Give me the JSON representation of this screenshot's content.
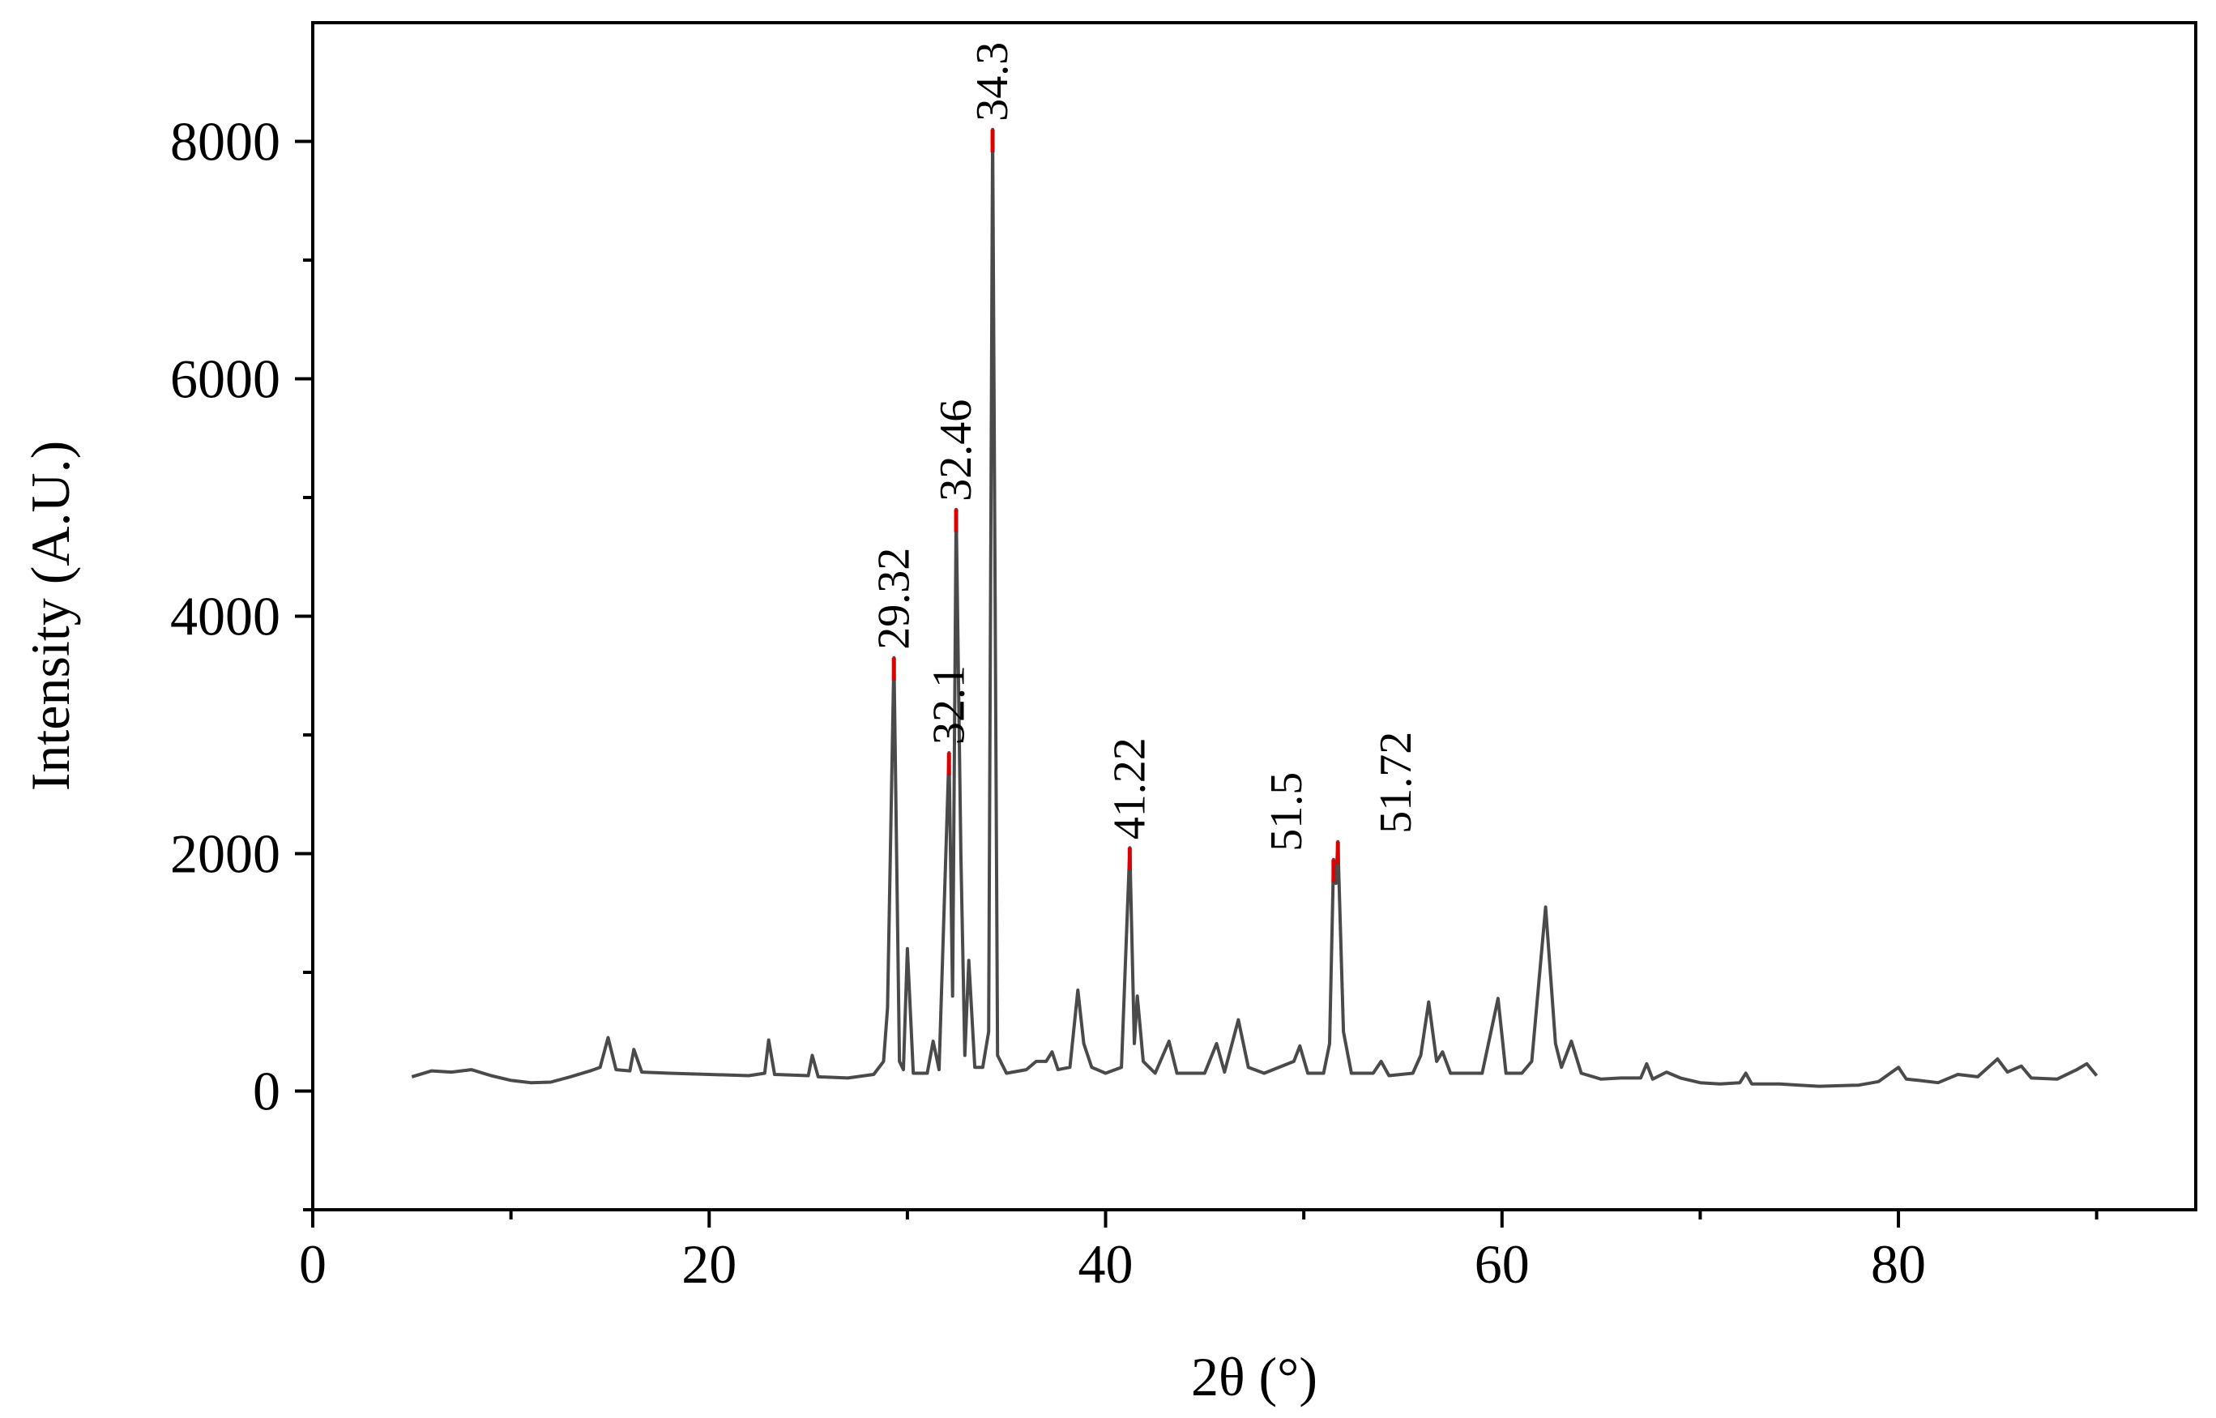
{
  "chart_data": {
    "type": "line",
    "title": "",
    "xlabel": "2θ  (°)",
    "ylabel": "Intensity (A.U.)",
    "xlim": [
      0,
      95
    ],
    "ylim": [
      -1000,
      9000
    ],
    "x_ticks": [
      0,
      20,
      40,
      60,
      80
    ],
    "y_ticks": [
      0,
      2000,
      4000,
      6000,
      8000
    ],
    "grid": false,
    "legend": "none",
    "colors": {
      "line": "#4a4a4a",
      "peak_marker": "#dd0000",
      "axes": "#000000"
    },
    "series": [
      {
        "values": [
          [
            5,
            120
          ],
          [
            6,
            170
          ],
          [
            7,
            160
          ],
          [
            8,
            180
          ],
          [
            9,
            130
          ],
          [
            10,
            90
          ],
          [
            11,
            70
          ],
          [
            12,
            75
          ],
          [
            13,
            120
          ],
          [
            14,
            170
          ],
          [
            14.5,
            200
          ],
          [
            14.9,
            450
          ],
          [
            15.3,
            180
          ],
          [
            16,
            170
          ],
          [
            16.2,
            350
          ],
          [
            16.6,
            160
          ],
          [
            18,
            150
          ],
          [
            20,
            140
          ],
          [
            22,
            130
          ],
          [
            22.8,
            150
          ],
          [
            23,
            430
          ],
          [
            23.3,
            140
          ],
          [
            25,
            130
          ],
          [
            25.2,
            300
          ],
          [
            25.5,
            120
          ],
          [
            27,
            110
          ],
          [
            28.3,
            140
          ],
          [
            28.8,
            250
          ],
          [
            29.0,
            700
          ],
          [
            29.32,
            3650
          ],
          [
            29.6,
            250
          ],
          [
            29.8,
            180
          ],
          [
            30.0,
            1200
          ],
          [
            30.3,
            150
          ],
          [
            31.0,
            150
          ],
          [
            31.3,
            420
          ],
          [
            31.6,
            180
          ],
          [
            32.1,
            2850
          ],
          [
            32.28,
            800
          ],
          [
            32.46,
            4900
          ],
          [
            32.7,
            2000
          ],
          [
            32.9,
            300
          ],
          [
            33.1,
            1100
          ],
          [
            33.4,
            200
          ],
          [
            33.8,
            200
          ],
          [
            34.1,
            500
          ],
          [
            34.3,
            8100
          ],
          [
            34.55,
            300
          ],
          [
            35,
            150
          ],
          [
            36,
            180
          ],
          [
            36.5,
            250
          ],
          [
            37,
            250
          ],
          [
            37.3,
            330
          ],
          [
            37.6,
            180
          ],
          [
            38.2,
            200
          ],
          [
            38.6,
            850
          ],
          [
            38.9,
            400
          ],
          [
            39.3,
            200
          ],
          [
            40,
            150
          ],
          [
            40.8,
            200
          ],
          [
            41.22,
            2050
          ],
          [
            41.45,
            400
          ],
          [
            41.6,
            800
          ],
          [
            41.9,
            250
          ],
          [
            42.5,
            150
          ],
          [
            43.2,
            420
          ],
          [
            43.6,
            150
          ],
          [
            45,
            150
          ],
          [
            45.6,
            400
          ],
          [
            46,
            160
          ],
          [
            46.7,
            600
          ],
          [
            47.2,
            200
          ],
          [
            48,
            150
          ],
          [
            49.5,
            250
          ],
          [
            49.8,
            380
          ],
          [
            50.2,
            150
          ],
          [
            51,
            150
          ],
          [
            51.3,
            400
          ],
          [
            51.5,
            1950
          ],
          [
            51.62,
            1750
          ],
          [
            51.72,
            2100
          ],
          [
            52,
            500
          ],
          [
            52.4,
            150
          ],
          [
            53.5,
            150
          ],
          [
            53.9,
            250
          ],
          [
            54.3,
            130
          ],
          [
            55.5,
            150
          ],
          [
            55.9,
            300
          ],
          [
            56.3,
            750
          ],
          [
            56.7,
            250
          ],
          [
            57,
            330
          ],
          [
            57.4,
            150
          ],
          [
            59,
            150
          ],
          [
            59.8,
            780
          ],
          [
            60.2,
            150
          ],
          [
            61,
            150
          ],
          [
            61.5,
            250
          ],
          [
            62.2,
            1550
          ],
          [
            62.7,
            400
          ],
          [
            63,
            200
          ],
          [
            63.5,
            420
          ],
          [
            64,
            150
          ],
          [
            65,
            100
          ],
          [
            66,
            110
          ],
          [
            67,
            110
          ],
          [
            67.3,
            230
          ],
          [
            67.6,
            100
          ],
          [
            68.3,
            160
          ],
          [
            69,
            110
          ],
          [
            70,
            70
          ],
          [
            71,
            60
          ],
          [
            72,
            70
          ],
          [
            72.3,
            150
          ],
          [
            72.6,
            60
          ],
          [
            74,
            60
          ],
          [
            75,
            50
          ],
          [
            76,
            40
          ],
          [
            78,
            50
          ],
          [
            79,
            80
          ],
          [
            80,
            200
          ],
          [
            80.4,
            100
          ],
          [
            81,
            90
          ],
          [
            82,
            70
          ],
          [
            83,
            140
          ],
          [
            84,
            120
          ],
          [
            85,
            270
          ],
          [
            85.5,
            160
          ],
          [
            86.2,
            210
          ],
          [
            86.7,
            110
          ],
          [
            88,
            100
          ],
          [
            89,
            180
          ],
          [
            89.5,
            230
          ],
          [
            90,
            130
          ]
        ]
      }
    ],
    "annotations": [
      {
        "x": 29.32,
        "y": 3650,
        "text": "29.32"
      },
      {
        "x": 32.1,
        "y": 2850,
        "text": "32.1"
      },
      {
        "x": 32.46,
        "y": 4900,
        "text": "32.46"
      },
      {
        "x": 34.3,
        "y": 8100,
        "text": "34.3"
      },
      {
        "x": 41.22,
        "y": 2050,
        "text": "41.22"
      },
      {
        "x": 51.5,
        "y": 1950,
        "text": "51.5"
      },
      {
        "x": 51.72,
        "y": 2100,
        "text": "51.72"
      }
    ]
  }
}
